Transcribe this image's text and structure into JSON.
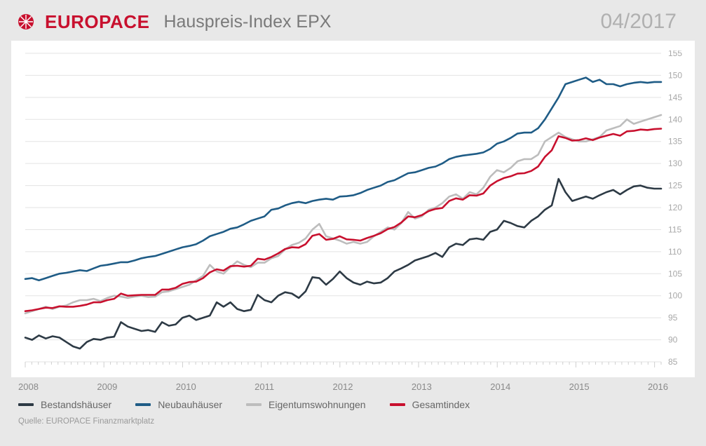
{
  "header": {
    "brand": "EUROPACE",
    "title": "Hauspreis-Index EPX",
    "date": "04/2017"
  },
  "chart": {
    "type": "line",
    "background_color": "#ffffff",
    "container_background": "#e8e8e8",
    "grid_color": "#e3e3e3",
    "grid_width": 1,
    "ylim": [
      85,
      155
    ],
    "ytick_step": 5,
    "yTicks": [
      85,
      90,
      95,
      100,
      105,
      110,
      115,
      120,
      125,
      130,
      135,
      140,
      145,
      150,
      155
    ],
    "xlim": [
      2008,
      2016
    ],
    "xTicks": [
      2008,
      2009,
      2010,
      2011,
      2012,
      2013,
      2014,
      2015,
      2016
    ],
    "x_minor_per_major": 12,
    "line_width": 2.6,
    "label_fontsize": 12,
    "label_color": "#a8a8a8",
    "series": [
      {
        "key": "bestandshaeuser",
        "label": "Bestandshäuser",
        "color": "#2d3a45",
        "values": [
          90.5,
          90.0,
          91.0,
          90.3,
          90.8,
          90.5,
          89.5,
          88.5,
          88.0,
          89.5,
          90.2,
          90.0,
          90.5,
          90.7,
          94.0,
          93.0,
          92.5,
          92.0,
          92.2,
          91.8,
          94.0,
          93.2,
          93.5,
          95.0,
          95.5,
          94.5,
          95.0,
          95.5,
          98.5,
          97.5,
          98.5,
          97.0,
          96.5,
          96.8,
          100.2,
          99.0,
          98.5,
          100.0,
          100.8,
          100.5,
          99.5,
          101.0,
          104.2,
          104.0,
          102.5,
          103.8,
          105.5,
          104.0,
          103.0,
          102.5,
          103.2,
          102.8,
          103.0,
          104.0,
          105.5,
          106.2,
          107.0,
          108.0,
          108.5,
          109.0,
          109.7,
          108.8,
          111.0,
          111.8,
          111.5,
          112.8,
          113.0,
          112.7,
          114.5,
          115.0,
          117.0,
          116.5,
          115.8,
          115.5,
          117.0,
          118.0,
          119.5,
          120.5,
          126.5,
          123.5,
          121.5,
          122.0,
          122.5,
          122.0,
          122.8,
          123.5,
          124.0,
          123.0,
          124.0,
          124.8,
          125.0,
          124.5,
          124.3,
          124.3
        ]
      },
      {
        "key": "neubauhaeuser",
        "label": "Neubauhäuser",
        "color": "#1f5c86",
        "values": [
          103.8,
          104.0,
          103.5,
          104.0,
          104.5,
          105.0,
          105.2,
          105.5,
          105.8,
          105.6,
          106.2,
          106.8,
          107.0,
          107.3,
          107.6,
          107.6,
          108.0,
          108.5,
          108.8,
          109.0,
          109.5,
          110.0,
          110.5,
          111.0,
          111.3,
          111.7,
          112.5,
          113.5,
          114.0,
          114.5,
          115.2,
          115.5,
          116.2,
          117.0,
          117.5,
          118.0,
          119.5,
          119.8,
          120.5,
          121.0,
          121.3,
          121.0,
          121.5,
          121.8,
          122.0,
          121.8,
          122.5,
          122.6,
          122.8,
          123.3,
          124.0,
          124.5,
          125.0,
          125.8,
          126.2,
          127.0,
          127.8,
          128.0,
          128.5,
          129.0,
          129.3,
          130.0,
          131.0,
          131.5,
          131.8,
          132.0,
          132.2,
          132.5,
          133.3,
          134.5,
          135.0,
          135.8,
          136.8,
          137.0,
          137.0,
          138.0,
          140.0,
          142.5,
          145.0,
          148.0,
          148.5,
          149.0,
          149.5,
          148.5,
          149.0,
          148.0,
          148.0,
          147.5,
          148.0,
          148.3,
          148.5,
          148.3,
          148.5,
          148.5
        ]
      },
      {
        "key": "eigentumswohnungen",
        "label": "Eigentumswohnungen",
        "color": "#bdbdbd",
        "values": [
          96.0,
          96.5,
          97.0,
          97.5,
          97.0,
          97.5,
          97.8,
          98.5,
          99.0,
          99.0,
          99.3,
          98.8,
          99.5,
          100.0,
          99.8,
          99.5,
          99.8,
          100.0,
          99.7,
          99.8,
          100.8,
          101.0,
          101.5,
          102.0,
          102.5,
          103.5,
          104.5,
          107.0,
          105.5,
          105.0,
          106.5,
          107.8,
          107.0,
          106.5,
          107.5,
          107.5,
          108.5,
          109.0,
          110.5,
          111.5,
          112.0,
          113.0,
          115.0,
          116.3,
          113.5,
          113.0,
          112.5,
          111.8,
          112.2,
          111.8,
          112.2,
          113.5,
          114.5,
          115.5,
          115.0,
          116.5,
          119.0,
          117.5,
          118.0,
          119.5,
          120.0,
          121.0,
          122.5,
          123.0,
          122.0,
          123.5,
          123.0,
          124.5,
          127.0,
          128.5,
          128.0,
          129.0,
          130.5,
          131.0,
          131.0,
          132.0,
          135.0,
          136.0,
          137.0,
          136.0,
          135.5,
          135.0,
          135.0,
          135.5,
          136.0,
          137.5,
          138.0,
          138.5,
          140.0,
          139.0,
          139.5,
          140.0,
          140.5,
          141.0
        ]
      },
      {
        "key": "gesamtindex",
        "label": "Gesamtindex",
        "color": "#c8102e",
        "values": [
          96.5,
          96.7,
          97.0,
          97.3,
          97.2,
          97.6,
          97.5,
          97.5,
          97.7,
          98.0,
          98.5,
          98.5,
          99.0,
          99.3,
          100.5,
          100.0,
          100.1,
          100.2,
          100.2,
          100.2,
          101.4,
          101.4,
          101.8,
          102.7,
          103.1,
          103.2,
          104.0,
          105.3,
          106.0,
          105.7,
          106.7,
          106.8,
          106.6,
          106.8,
          108.4,
          108.2,
          108.8,
          109.6,
          110.6,
          111.0,
          110.9,
          111.7,
          113.6,
          114.0,
          112.7,
          112.9,
          113.5,
          112.8,
          112.7,
          112.5,
          113.1,
          113.6,
          114.2,
          115.1,
          115.6,
          116.6,
          118.0,
          117.8,
          118.3,
          119.2,
          119.7,
          119.9,
          121.5,
          122.1,
          121.8,
          122.8,
          122.7,
          123.2,
          125.0,
          126.0,
          126.7,
          127.1,
          127.7,
          127.8,
          128.3,
          129.3,
          131.5,
          133.0,
          136.2,
          135.8,
          135.2,
          135.3,
          135.7,
          135.3,
          135.9,
          136.3,
          136.7,
          136.3,
          137.3,
          137.4,
          137.7,
          137.6,
          137.8,
          137.9
        ]
      }
    ]
  },
  "legend": {
    "items": [
      {
        "key": "bestandshaeuser",
        "label": "Bestandshäuser",
        "color": "#2d3a45"
      },
      {
        "key": "neubauhaeuser",
        "label": "Neubauhäuser",
        "color": "#1f5c86"
      },
      {
        "key": "eigentumswohnungen",
        "label": "Eigentumswohnungen",
        "color": "#bdbdbd"
      },
      {
        "key": "gesamtindex",
        "label": "Gesamtindex",
        "color": "#c8102e"
      }
    ]
  },
  "source": "Quelle: EUROPACE Finanzmarktplatz"
}
